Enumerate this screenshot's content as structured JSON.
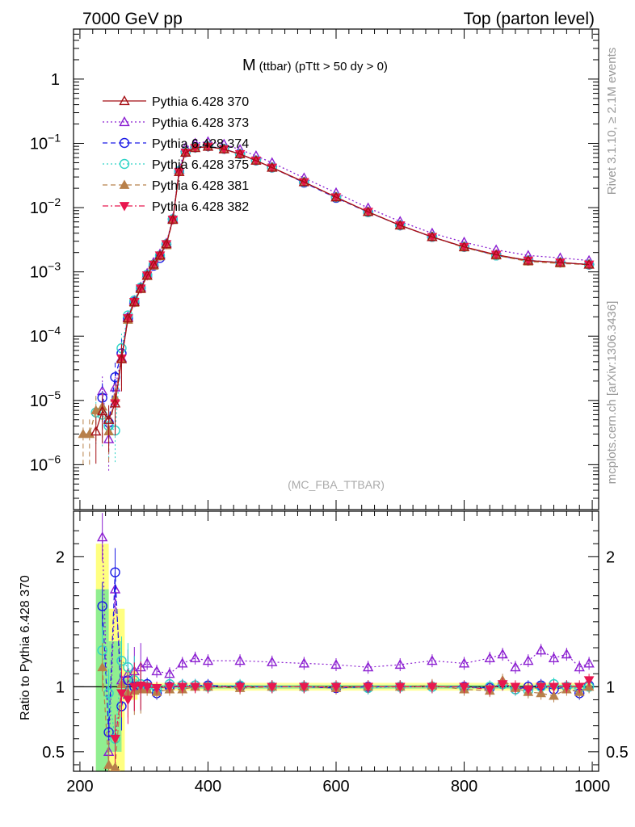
{
  "header": {
    "left": "7000 GeV pp",
    "right": "Top (parton level)"
  },
  "side": {
    "rivet": "Rivet 3.1.10, ≥ 2.1M events",
    "mcplots": "mcplots.cern.ch [arXiv:1306.3436]"
  },
  "chart_data": [
    {
      "type": "line",
      "title_main": "M",
      "title_sub": "(ttbar) (pTtt > 50 dy > 0)",
      "watermark": "(MC_FBA_TTBAR)",
      "xlim": [
        190,
        1010
      ],
      "ylim": [
        2e-07,
        6
      ],
      "yscale": "log",
      "yticks": [
        {
          "v": 1e-06,
          "mant": "10",
          "exp": "−6"
        },
        {
          "v": 1e-05,
          "mant": "10",
          "exp": "−5"
        },
        {
          "v": 0.0001,
          "mant": "10",
          "exp": "−4"
        },
        {
          "v": 0.001,
          "mant": "10",
          "exp": "−3"
        },
        {
          "v": 0.01,
          "mant": "10",
          "exp": "−2"
        },
        {
          "v": 0.1,
          "mant": "10",
          "exp": "−1"
        },
        {
          "v": 1,
          "mant": "1",
          "exp": ""
        }
      ],
      "legend_position": "top-left",
      "series": [
        {
          "name": "Pythia 6.428 370",
          "color": "#a50f15",
          "marker": "triangle-open",
          "dash": "solid",
          "x": [
            225,
            235,
            245,
            255,
            265,
            275,
            285,
            295,
            305,
            315,
            325,
            335,
            345,
            355,
            365,
            380,
            400,
            425,
            450,
            475,
            500,
            550,
            600,
            650,
            700,
            750,
            800,
            850,
            900,
            950,
            995
          ],
          "y": [
            3.3e-06,
            6.8e-06,
            5e-06,
            9e-06,
            4.4e-05,
            0.00019,
            0.00034,
            0.00055,
            0.00088,
            0.0013,
            0.0018,
            0.0027,
            0.0065,
            0.036,
            0.072,
            0.085,
            0.089,
            0.081,
            0.068,
            0.054,
            0.042,
            0.025,
            0.0145,
            0.0086,
            0.0053,
            0.0035,
            0.00245,
            0.00185,
            0.0015,
            0.0014,
            0.0013
          ]
        },
        {
          "name": "Pythia 6.428 373",
          "color": "#8b1fd1",
          "marker": "triangle-open",
          "dash": "dot",
          "x": [
            235,
            245,
            255,
            265,
            275,
            285,
            295,
            305,
            315,
            325,
            335,
            345,
            355,
            365,
            380,
            400,
            425,
            450,
            475,
            500,
            550,
            600,
            650,
            700,
            750,
            800,
            850,
            900,
            950,
            995
          ],
          "y": [
            1.4e-05,
            2.5e-06,
            1.6e-05,
            4.6e-05,
            0.0002,
            0.00036,
            0.00058,
            0.00095,
            0.0014,
            0.0019,
            0.0028,
            0.0068,
            0.039,
            0.086,
            0.1,
            0.106,
            0.097,
            0.08,
            0.064,
            0.05,
            0.029,
            0.017,
            0.0099,
            0.0061,
            0.004,
            0.0029,
            0.0022,
            0.0018,
            0.00165,
            0.0015
          ]
        },
        {
          "name": "Pythia 6.428 374",
          "color": "#1a1ae6",
          "marker": "circle-open",
          "dash": "dash",
          "x": [
            235,
            245,
            255,
            265,
            275,
            285,
            295,
            305,
            315,
            325,
            335,
            345,
            355,
            365,
            380,
            400,
            425,
            450,
            475,
            500,
            550,
            600,
            650,
            700,
            750,
            800,
            850,
            900,
            950,
            995
          ],
          "y": [
            1.1e-05,
            4.5e-06,
            2.3e-05,
            5.4e-05,
            0.00019,
            0.00034,
            0.00056,
            0.0009,
            0.00125,
            0.00165,
            0.0027,
            0.0066,
            0.037,
            0.073,
            0.087,
            0.09,
            0.082,
            0.068,
            0.054,
            0.042,
            0.0245,
            0.0142,
            0.0085,
            0.0053,
            0.0035,
            0.00245,
            0.0018,
            0.0015,
            0.0014,
            0.0013
          ]
        },
        {
          "name": "Pythia 6.428 375",
          "color": "#2ed3c6",
          "marker": "circle-open",
          "dash": "dot",
          "x": [
            225,
            235,
            245,
            255,
            265,
            275,
            285,
            295,
            305,
            315,
            325,
            335,
            345,
            355,
            365,
            380,
            400,
            425,
            450,
            475,
            500,
            550,
            600,
            650,
            700,
            750,
            800,
            850,
            900,
            950,
            995
          ],
          "y": [
            6.5e-06,
            6e-06,
            4e-06,
            3.4e-06,
            6.5e-05,
            0.00021,
            0.00036,
            0.00057,
            0.0009,
            0.0013,
            0.0018,
            0.0027,
            0.0066,
            0.037,
            0.073,
            0.086,
            0.09,
            0.082,
            0.068,
            0.054,
            0.042,
            0.025,
            0.0145,
            0.0085,
            0.0053,
            0.0035,
            0.00245,
            0.0018,
            0.0015,
            0.0014,
            0.0013
          ]
        },
        {
          "name": "Pythia 6.428 381",
          "color": "#b8804a",
          "marker": "triangle-filled",
          "dash": "dash",
          "x": [
            205,
            215,
            225,
            235,
            245,
            255,
            265,
            275,
            285,
            295,
            305,
            315,
            325,
            335,
            345,
            355,
            365,
            380,
            400,
            425,
            450,
            475,
            500,
            550,
            600,
            650,
            700,
            750,
            800,
            850,
            900,
            950,
            995
          ],
          "y": [
            3e-06,
            3e-06,
            7e-06,
            8e-06,
            3.3e-06,
            1.1e-05,
            4.5e-05,
            0.00018,
            0.00033,
            0.00054,
            0.00086,
            0.00125,
            0.00175,
            0.0026,
            0.0064,
            0.036,
            0.072,
            0.085,
            0.089,
            0.081,
            0.068,
            0.054,
            0.042,
            0.025,
            0.0145,
            0.0086,
            0.0053,
            0.0035,
            0.0024,
            0.0018,
            0.00145,
            0.00135,
            0.0013
          ]
        },
        {
          "name": "Pythia 6.428 382",
          "color": "#e8174f",
          "marker": "triangle-down-filled",
          "dash": "dashdot",
          "x": [
            255,
            265,
            275,
            285,
            295,
            305,
            315,
            325,
            335,
            345,
            355,
            365,
            380,
            400,
            425,
            450,
            475,
            500,
            550,
            600,
            650,
            700,
            750,
            800,
            850,
            900,
            950,
            995
          ],
          "y": [
            9e-06,
            4.5e-05,
            0.00019,
            0.00034,
            0.00055,
            0.00088,
            0.0013,
            0.0018,
            0.0027,
            0.0065,
            0.036,
            0.072,
            0.085,
            0.089,
            0.081,
            0.068,
            0.054,
            0.042,
            0.025,
            0.0145,
            0.0086,
            0.0053,
            0.0035,
            0.00245,
            0.00185,
            0.0015,
            0.0014,
            0.0013
          ]
        }
      ]
    },
    {
      "type": "line",
      "ylabel": "Ratio to Pythia 6.428 370",
      "xlim": [
        190,
        1010
      ],
      "ylim": [
        0.35,
        2.35
      ],
      "xticks": [
        200,
        400,
        600,
        800,
        1000
      ],
      "yticks": [
        {
          "v": 0.5,
          "label": "0.5"
        },
        {
          "v": 1,
          "label": "1"
        },
        {
          "v": 2,
          "label": "2"
        }
      ],
      "reference_line": 1,
      "series": [
        {
          "name": "Pythia 6.428 373",
          "color": "#8b1fd1",
          "marker": "triangle-open",
          "dash": "dot",
          "x": [
            235,
            245,
            255,
            265,
            275,
            285,
            295,
            305,
            320,
            340,
            360,
            380,
            400,
            450,
            500,
            550,
            600,
            650,
            700,
            750,
            800,
            840,
            860,
            880,
            900,
            920,
            940,
            960,
            980,
            995
          ],
          "y": [
            2.15,
            0.5,
            1.75,
            1.05,
            1.1,
            1.12,
            1.15,
            1.18,
            1.12,
            1.1,
            1.18,
            1.22,
            1.2,
            1.2,
            1.19,
            1.18,
            1.17,
            1.15,
            1.17,
            1.2,
            1.18,
            1.22,
            1.25,
            1.15,
            1.2,
            1.28,
            1.22,
            1.25,
            1.15,
            1.18
          ]
        },
        {
          "name": "Pythia 6.428 374",
          "color": "#1a1ae6",
          "marker": "circle-open",
          "dash": "dash",
          "x": [
            235,
            245,
            255,
            265,
            275,
            285,
            295,
            305,
            320,
            340,
            360,
            380,
            400,
            450,
            500,
            550,
            600,
            650,
            700,
            750,
            800,
            840,
            860,
            880,
            900,
            920,
            940,
            960,
            980,
            995
          ],
          "y": [
            1.62,
            0.65,
            1.88,
            0.85,
            1.05,
            1.0,
            1.0,
            1.02,
            0.95,
            1.0,
            1.01,
            1.01,
            1.01,
            1.0,
            1.0,
            1.0,
            0.99,
            1.0,
            1.0,
            1.0,
            1.0,
            0.99,
            1.02,
            0.98,
            1.0,
            1.01,
            0.98,
            1.0,
            0.95,
            1.01
          ]
        },
        {
          "name": "Pythia 6.428 375",
          "color": "#2ed3c6",
          "marker": "circle-open",
          "dash": "dot",
          "x": [
            235,
            245,
            255,
            265,
            275,
            285,
            295,
            305,
            320,
            340,
            360,
            380,
            400,
            450,
            500,
            550,
            600,
            650,
            700,
            750,
            800,
            840,
            860,
            880,
            900,
            920,
            940,
            960,
            980,
            995
          ],
          "y": [
            1.28,
            0.95,
            0.6,
            1.2,
            1.15,
            1.05,
            1.02,
            1.0,
            0.98,
            1.02,
            1.01,
            1.01,
            1.0,
            1.01,
            1.0,
            1.0,
            1.0,
            0.99,
            1.0,
            1.0,
            0.99,
            1.0,
            1.02,
            0.98,
            0.97,
            1.0,
            1.02,
            1.0,
            0.99,
            1.0
          ]
        },
        {
          "name": "Pythia 6.428 381",
          "color": "#b8804a",
          "marker": "triangle-filled",
          "dash": "dash",
          "x": [
            235,
            245,
            255,
            265,
            275,
            285,
            295,
            305,
            320,
            340,
            360,
            380,
            400,
            450,
            500,
            550,
            600,
            650,
            700,
            750,
            800,
            840,
            860,
            880,
            900,
            920,
            940,
            960,
            980,
            995
          ],
          "y": [
            1.15,
            0.4,
            0.38,
            1.02,
            0.95,
            0.97,
            0.98,
            0.98,
            0.96,
            0.98,
            0.98,
            1.0,
            1.0,
            0.99,
            1.0,
            1.0,
            0.99,
            1.0,
            1.0,
            1.01,
            0.98,
            0.97,
            1.05,
            0.99,
            0.96,
            0.95,
            0.93,
            0.98,
            0.96,
            1.0
          ]
        },
        {
          "name": "Pythia 6.428 382",
          "color": "#e8174f",
          "marker": "triangle-down-filled",
          "dash": "dashdot",
          "x": [
            255,
            265,
            275,
            285,
            295,
            305,
            320,
            340,
            360,
            380,
            400,
            450,
            500,
            550,
            600,
            650,
            700,
            750,
            800,
            840,
            860,
            880,
            900,
            920,
            940,
            960,
            980,
            995
          ],
          "y": [
            0.6,
            0.95,
            0.9,
            1.0,
            1.01,
            1.0,
            0.99,
            1.0,
            1.0,
            1.0,
            1.0,
            1.0,
            1.0,
            1.0,
            1.0,
            1.0,
            1.0,
            1.0,
            1.0,
            0.98,
            1.02,
            1.0,
            0.98,
            1.0,
            1.0,
            1.0,
            1.0,
            1.05
          ]
        }
      ]
    }
  ]
}
